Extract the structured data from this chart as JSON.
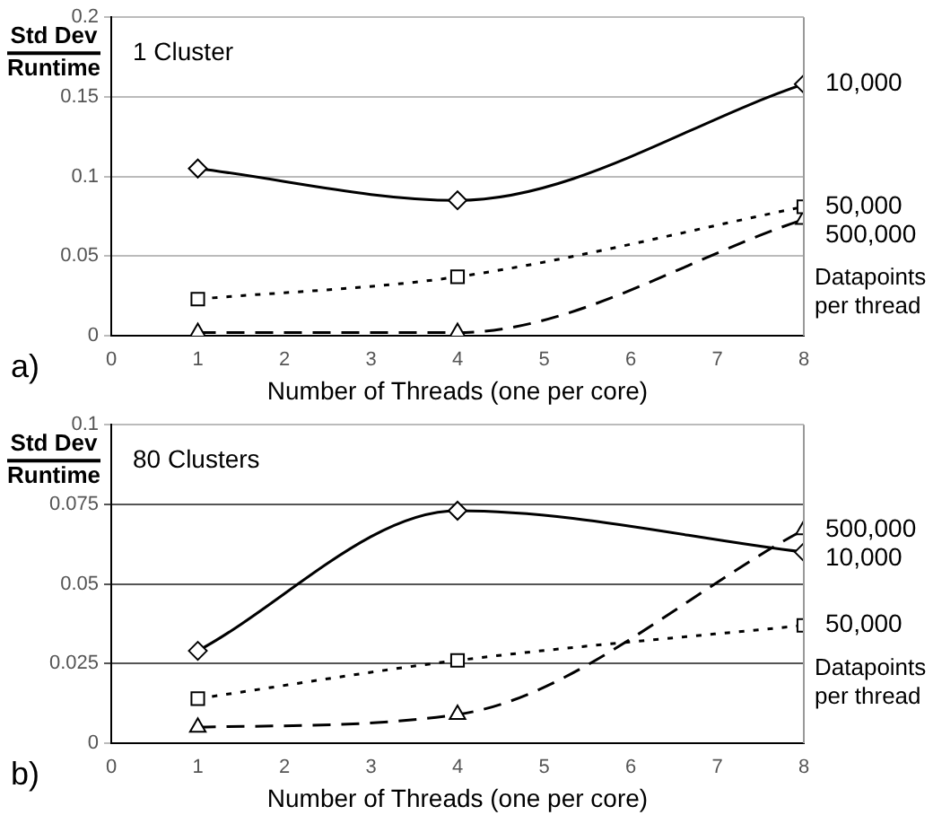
{
  "chart_data": [
    {
      "type": "line",
      "title": "1 Cluster",
      "xlabel": "Number of Threads (one per core)",
      "ylabel": "Std Dev\nRuntime",
      "legend_title": "Datapoints per thread",
      "annotations": [
        "a)"
      ],
      "x": [
        1,
        4,
        8
      ],
      "xlim": [
        0,
        8
      ],
      "xticks": [
        0,
        1,
        2,
        3,
        4,
        5,
        6,
        7,
        8
      ],
      "ylim": [
        0,
        0.2
      ],
      "yticks": [
        0,
        0.05,
        0.1,
        0.15,
        0.2
      ],
      "grid": "y",
      "legend": false,
      "series": [
        {
          "name": "10,000",
          "color": "#000000",
          "values": [
            0.105,
            0.085,
            0.158
          ],
          "marker": "diamond",
          "line_style": "solid"
        },
        {
          "name": "50,000",
          "color": "#000000",
          "values": [
            0.023,
            0.037,
            0.081
          ],
          "marker": "square",
          "line_style": "dotted"
        },
        {
          "name": "500,000",
          "color": "#000000",
          "values": [
            0.002,
            0.002,
            0.073
          ],
          "marker": "triangle",
          "line_style": "dashed"
        }
      ]
    },
    {
      "type": "line",
      "title": "80 Clusters",
      "xlabel": "Number of Threads (one per core)",
      "ylabel": "Std Dev\nRuntime",
      "legend_title": "Datapoints per thread",
      "annotations": [
        "b)"
      ],
      "x": [
        1,
        4,
        8
      ],
      "xlim": [
        0,
        8
      ],
      "xticks": [
        0,
        1,
        2,
        3,
        4,
        5,
        6,
        7,
        8
      ],
      "ylim": [
        0,
        0.1
      ],
      "yticks": [
        0,
        0.025,
        0.05,
        0.075,
        0.1
      ],
      "grid": "y",
      "legend": false,
      "series": [
        {
          "name": "10,000",
          "color": "#000000",
          "values": [
            0.029,
            0.073,
            0.06
          ],
          "marker": "diamond",
          "line_style": "solid"
        },
        {
          "name": "50,000",
          "color": "#000000",
          "values": [
            0.014,
            0.026,
            0.037
          ],
          "marker": "square",
          "line_style": "dotted"
        },
        {
          "name": "500,000",
          "color": "#000000",
          "values": [
            0.005,
            0.009,
            0.067
          ],
          "marker": "triangle",
          "line_style": "dashed"
        }
      ]
    }
  ]
}
